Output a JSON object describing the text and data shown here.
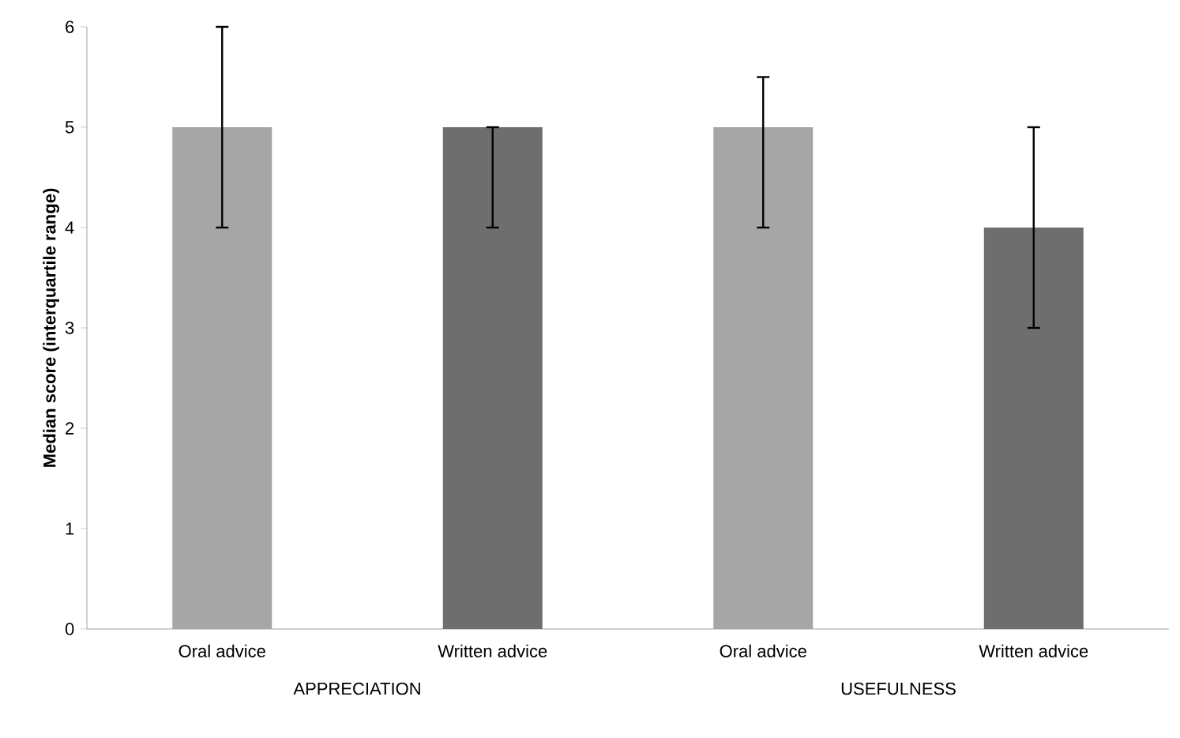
{
  "chart_data": {
    "type": "bar",
    "ylabel": "Median score (interquartile range)",
    "categories": [
      "Oral advice",
      "Written advice",
      "Oral advice",
      "Written advice"
    ],
    "values": [
      5,
      5,
      5,
      4
    ],
    "colors": [
      "#a6a6a6",
      "#6e6e6e",
      "#a6a6a6",
      "#6e6e6e"
    ],
    "errors": [
      [
        4,
        6
      ],
      [
        4,
        5
      ],
      [
        4,
        5.5
      ],
      [
        3,
        5
      ]
    ],
    "ylim": [
      0,
      6
    ],
    "yticks": [
      0,
      1,
      2,
      3,
      4,
      5,
      6
    ],
    "grid": false,
    "annotations": [
      "APPRECIATION",
      "USEFULNESS"
    ]
  }
}
